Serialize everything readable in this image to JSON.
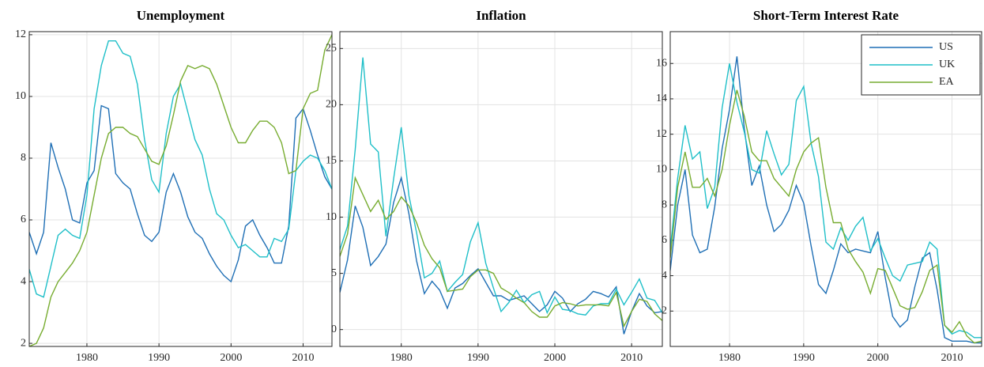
{
  "chart_data": [
    {
      "type": "line",
      "title": "Unemployment",
      "x": [
        1972,
        1973,
        1974,
        1975,
        1976,
        1977,
        1978,
        1979,
        1980,
        1981,
        1982,
        1983,
        1984,
        1985,
        1986,
        1987,
        1988,
        1989,
        1990,
        1991,
        1992,
        1993,
        1994,
        1995,
        1996,
        1997,
        1998,
        1999,
        2000,
        2001,
        2002,
        2003,
        2004,
        2005,
        2006,
        2007,
        2008,
        2009,
        2010,
        2011,
        2012,
        2013,
        2014
      ],
      "series": [
        {
          "name": "US",
          "color": "#1f6fb5",
          "values": [
            5.6,
            4.9,
            5.6,
            8.5,
            7.7,
            7.0,
            6.0,
            5.9,
            7.2,
            7.6,
            9.7,
            9.6,
            7.5,
            7.2,
            7.0,
            6.2,
            5.5,
            5.3,
            5.6,
            6.9,
            7.5,
            6.9,
            6.1,
            5.6,
            5.4,
            4.9,
            4.5,
            4.2,
            4.0,
            4.7,
            5.8,
            6.0,
            5.5,
            5.1,
            4.6,
            4.6,
            5.8,
            9.3,
            9.6,
            8.9,
            8.1,
            7.4,
            7.0
          ]
        },
        {
          "name": "UK",
          "color": "#1fbfc8",
          "values": [
            4.4,
            3.6,
            3.5,
            4.5,
            5.5,
            5.7,
            5.5,
            5.4,
            6.8,
            9.6,
            11.0,
            11.8,
            11.8,
            11.4,
            11.3,
            10.4,
            8.6,
            7.3,
            6.9,
            8.8,
            10.0,
            10.4,
            9.5,
            8.6,
            8.1,
            7.0,
            6.2,
            6.0,
            5.5,
            5.1,
            5.2,
            5.0,
            4.8,
            4.8,
            5.4,
            5.3,
            5.7,
            7.6,
            7.9,
            8.1,
            8.0,
            7.6,
            7.0
          ]
        },
        {
          "name": "EA",
          "color": "#77ac30",
          "values": [
            1.9,
            2.0,
            2.5,
            3.5,
            4.0,
            4.3,
            4.6,
            5.0,
            5.6,
            6.8,
            8.0,
            8.8,
            9.0,
            9.0,
            8.8,
            8.7,
            8.3,
            7.9,
            7.8,
            8.4,
            9.4,
            10.5,
            11.0,
            10.9,
            11.0,
            10.9,
            10.4,
            9.7,
            9.0,
            8.5,
            8.5,
            8.9,
            9.2,
            9.2,
            9.0,
            8.5,
            7.5,
            7.6,
            9.6,
            10.1,
            10.2,
            11.5,
            12.0
          ]
        }
      ],
      "xlim": [
        1972,
        2014
      ],
      "xticks": [
        1980,
        1990,
        2000,
        2010
      ],
      "ylim": [
        1.9,
        12.1
      ],
      "yticks": [
        2,
        4,
        6,
        8,
        10,
        12
      ],
      "grid": true
    },
    {
      "type": "line",
      "title": "Inflation",
      "x": [
        1972,
        1973,
        1974,
        1975,
        1976,
        1977,
        1978,
        1979,
        1980,
        1981,
        1982,
        1983,
        1984,
        1985,
        1986,
        1987,
        1988,
        1989,
        1990,
        1991,
        1992,
        1993,
        1994,
        1995,
        1996,
        1997,
        1998,
        1999,
        2000,
        2001,
        2002,
        2003,
        2004,
        2005,
        2006,
        2007,
        2008,
        2009,
        2010,
        2011,
        2012,
        2013,
        2014
      ],
      "series": [
        {
          "name": "US",
          "color": "#1f6fb5",
          "values": [
            3.3,
            6.2,
            11.0,
            9.1,
            5.7,
            6.5,
            7.6,
            11.3,
            13.5,
            10.3,
            6.1,
            3.2,
            4.3,
            3.5,
            1.9,
            3.7,
            4.1,
            4.8,
            5.4,
            4.2,
            3.0,
            3.0,
            2.6,
            2.8,
            3.0,
            2.3,
            1.6,
            2.2,
            3.4,
            2.8,
            1.6,
            2.3,
            2.7,
            3.4,
            3.2,
            2.9,
            3.8,
            -0.4,
            1.6,
            3.2,
            2.1,
            1.5,
            1.6
          ]
        },
        {
          "name": "UK",
          "color": "#1fbfc8",
          "values": [
            7.1,
            9.2,
            16.0,
            24.2,
            16.5,
            15.8,
            8.3,
            13.4,
            18.0,
            11.9,
            8.6,
            4.6,
            5.0,
            6.1,
            3.4,
            4.2,
            4.9,
            7.8,
            9.5,
            5.9,
            3.7,
            1.6,
            2.4,
            3.5,
            2.4,
            3.1,
            3.4,
            1.5,
            2.9,
            1.8,
            1.7,
            1.4,
            1.3,
            2.1,
            2.3,
            2.3,
            3.6,
            2.2,
            3.3,
            4.5,
            2.8,
            2.6,
            1.5
          ]
        },
        {
          "name": "EA",
          "color": "#77ac30",
          "values": [
            6.5,
            8.5,
            13.5,
            12.0,
            10.5,
            11.5,
            9.8,
            10.5,
            11.8,
            11.0,
            9.5,
            7.5,
            6.3,
            5.5,
            3.4,
            3.5,
            3.6,
            4.7,
            5.3,
            5.3,
            5.0,
            3.7,
            3.3,
            2.8,
            2.4,
            1.6,
            1.1,
            1.1,
            2.1,
            2.4,
            2.3,
            2.1,
            2.2,
            2.2,
            2.2,
            2.1,
            3.3,
            0.3,
            1.6,
            2.7,
            2.5,
            1.4,
            0.8
          ]
        }
      ],
      "xlim": [
        1972,
        2014
      ],
      "xticks": [
        1980,
        1990,
        2000,
        2010
      ],
      "ylim": [
        -1.5,
        26.5
      ],
      "yticks": [
        0,
        5,
        10,
        15,
        20,
        25
      ],
      "grid": true
    },
    {
      "type": "line",
      "title": "Short-Term Interest Rate",
      "x": [
        1972,
        1973,
        1974,
        1975,
        1976,
        1977,
        1978,
        1979,
        1980,
        1981,
        1982,
        1983,
        1984,
        1985,
        1986,
        1987,
        1988,
        1989,
        1990,
        1991,
        1992,
        1993,
        1994,
        1995,
        1996,
        1997,
        1998,
        1999,
        2000,
        2001,
        2002,
        2003,
        2004,
        2005,
        2006,
        2007,
        2008,
        2009,
        2010,
        2011,
        2012,
        2013,
        2014
      ],
      "series": [
        {
          "name": "US",
          "color": "#1f6fb5",
          "values": [
            4.3,
            8.0,
            10.0,
            6.3,
            5.3,
            5.5,
            7.9,
            11.2,
            13.4,
            16.4,
            12.3,
            9.1,
            10.2,
            8.0,
            6.5,
            6.9,
            7.7,
            9.1,
            8.1,
            5.7,
            3.5,
            3.0,
            4.3,
            5.8,
            5.3,
            5.5,
            5.4,
            5.3,
            6.5,
            3.9,
            1.7,
            1.1,
            1.5,
            3.4,
            5.0,
            5.3,
            3.2,
            0.5,
            0.3,
            0.3,
            0.3,
            0.2,
            0.2
          ]
        },
        {
          "name": "UK",
          "color": "#1fbfc8",
          "values": [
            5.5,
            9.5,
            12.5,
            10.6,
            11.0,
            7.8,
            9.0,
            13.5,
            16.0,
            13.8,
            12.1,
            10.0,
            9.8,
            12.2,
            10.9,
            9.7,
            10.3,
            13.9,
            14.7,
            11.5,
            9.6,
            5.9,
            5.5,
            6.7,
            6.0,
            6.8,
            7.3,
            5.4,
            6.1,
            5.0,
            4.0,
            3.7,
            4.6,
            4.7,
            4.8,
            5.9,
            5.5,
            1.2,
            0.7,
            0.9,
            0.8,
            0.5,
            0.5
          ]
        },
        {
          "name": "EA",
          "color": "#77ac30",
          "values": [
            5.0,
            9.0,
            11.0,
            9.0,
            9.0,
            9.5,
            8.5,
            10.0,
            12.5,
            14.5,
            13.0,
            11.0,
            10.5,
            10.5,
            9.5,
            9.0,
            8.5,
            10.0,
            11.0,
            11.5,
            11.8,
            9.0,
            7.0,
            7.0,
            5.5,
            4.8,
            4.2,
            3.0,
            4.4,
            4.3,
            3.3,
            2.3,
            2.1,
            2.2,
            3.1,
            4.3,
            4.6,
            1.2,
            0.8,
            1.4,
            0.6,
            0.2,
            0.3
          ]
        }
      ],
      "xlim": [
        1972,
        2014
      ],
      "xticks": [
        1980,
        1990,
        2000,
        2010
      ],
      "ylim": [
        0,
        17.8
      ],
      "yticks": [
        2,
        4,
        6,
        8,
        10,
        12,
        14,
        16
      ],
      "grid": true,
      "legend": "northeast"
    }
  ]
}
